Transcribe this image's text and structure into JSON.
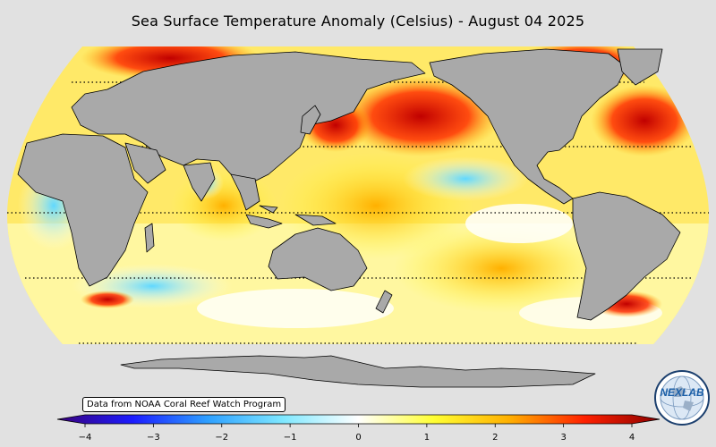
{
  "title": "Sea Surface Temperature Anomaly (Celsius) - August 04 2025",
  "source_note": "Data from NOAA Coral Reef Watch Program",
  "logo_text": "NEXLAB",
  "colorbar": {
    "min": -4,
    "max": 4,
    "ticks": [
      "−4",
      "−3",
      "−2",
      "−1",
      "0",
      "1",
      "2",
      "3",
      "4"
    ],
    "colors": [
      "#3a007a",
      "#1c1cff",
      "#2ea0ff",
      "#7fe8ff",
      "#ffffff",
      "#ffff33",
      "#ffb000",
      "#ff2000",
      "#8b0000"
    ]
  },
  "colors": {
    "background": "#e1e1e1",
    "land": "#a9a9a9",
    "ocean_neutral": "#ffffff",
    "warm_anomaly": "#ff2000",
    "strong_warm_anomaly": "#b00000",
    "cool_anomaly": "#7fe8ff"
  }
}
